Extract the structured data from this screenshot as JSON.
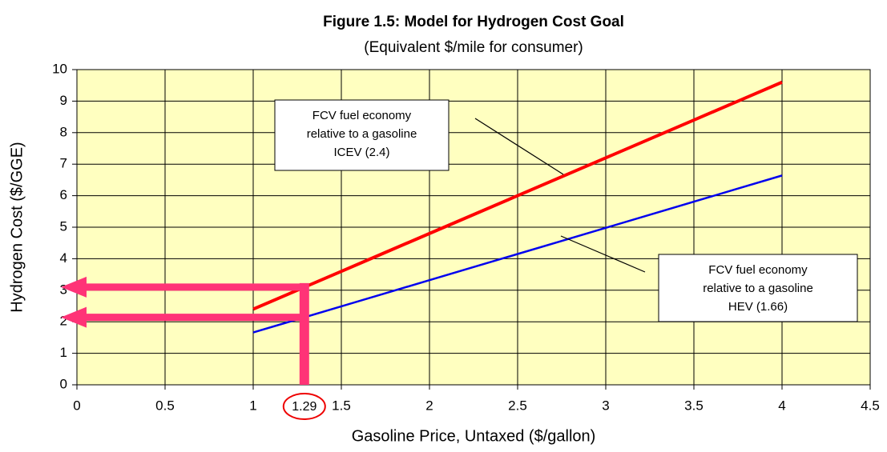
{
  "chart_data": {
    "type": "line",
    "title": "Figure 1.5: Model for Hydrogen Cost Goal",
    "subtitle": "(Equivalent $/mile for consumer)",
    "x_label": "Gasoline Price, Untaxed ($/gallon)",
    "y_label": "Hydrogen Cost ($/GGE)",
    "x": [
      1,
      1.25,
      1.5,
      1.75,
      2,
      2.25,
      2.5,
      2.75,
      3,
      3.25,
      3.5,
      3.75,
      4
    ],
    "series": [
      {
        "color": "#ff0000",
        "values": [
          2.4,
          3,
          3.6,
          4.2,
          4.8,
          5.4,
          6,
          6.6,
          7.2,
          7.8,
          8.4,
          9,
          9.6
        ]
      },
      {
        "color": "#0000ee",
        "values": [
          1.66,
          2.075,
          2.49,
          2.905,
          3.32,
          3.735,
          4.15,
          4.565,
          4.98,
          5.395,
          5.81,
          6.225,
          6.64
        ]
      }
    ],
    "annotations": [
      {
        "lines": [
          "FCV fuel economy",
          "relative to a gasoline",
          "ICEV (2.4)"
        ]
      },
      {
        "lines": [
          "FCV fuel economy",
          "relative to a gasoline",
          "HEV (1.66)"
        ]
      }
    ],
    "highlight": {
      "x": 1.29,
      "y": [
        3.1,
        2.14
      ],
      "color": "#ff3377"
    },
    "xlim": [
      0,
      4.5
    ],
    "xticks": [
      0,
      0.5,
      1,
      1.5,
      2,
      2.5,
      3,
      3.5,
      4,
      4.5
    ],
    "ylim": [
      0,
      10
    ],
    "yticks": [
      0,
      1,
      2,
      3,
      4,
      5,
      6,
      7,
      8,
      9,
      10
    ],
    "grid": true,
    "plot_background": "#ffffc0"
  }
}
